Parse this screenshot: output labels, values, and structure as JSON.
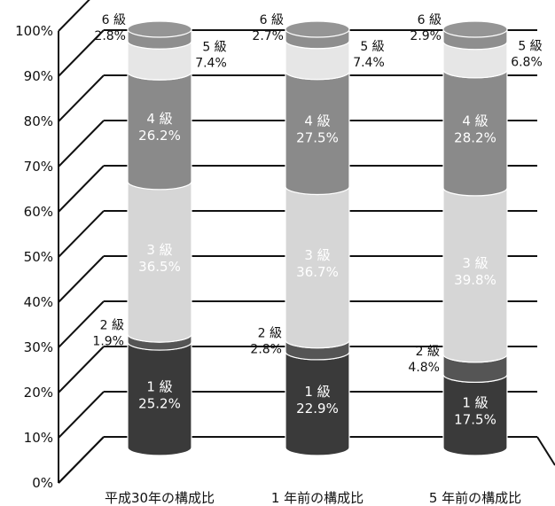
{
  "chart_data": {
    "type": "bar",
    "stacked": true,
    "ylim": [
      0,
      100
    ],
    "y_ticks": [
      "0%",
      "10%",
      "20%",
      "30%",
      "40%",
      "50%",
      "60%",
      "70%",
      "80%",
      "90%",
      "100%"
    ],
    "categories": [
      "平成30年の構成比",
      "1 年前の構成比",
      "5 年前の構成比"
    ],
    "series": [
      {
        "name": "1 級",
        "values": [
          25.2,
          22.9,
          17.5
        ],
        "labels": [
          "25.2%",
          "22.9%",
          "17.5%"
        ],
        "color": "#3a3a3a"
      },
      {
        "name": "2 級",
        "values": [
          1.9,
          2.8,
          4.8
        ],
        "labels": [
          "1.9%",
          "2.8%",
          "4.8%"
        ],
        "color": "#555555"
      },
      {
        "name": "3 級",
        "values": [
          36.5,
          36.7,
          39.8
        ],
        "labels": [
          "36.5%",
          "36.7%",
          "39.8%"
        ],
        "color": "#d6d6d6"
      },
      {
        "name": "4 級",
        "values": [
          26.2,
          27.5,
          28.2
        ],
        "labels": [
          "26.2%",
          "27.5%",
          "28.2%"
        ],
        "color": "#8a8a8a"
      },
      {
        "name": "5 級",
        "values": [
          7.4,
          7.4,
          6.8
        ],
        "labels": [
          "7.4%",
          "7.4%",
          "6.8%"
        ],
        "color": "#e6e6e6"
      },
      {
        "name": "6 級",
        "values": [
          2.8,
          2.7,
          2.9
        ],
        "labels": [
          "2.8%",
          "2.7%",
          "2.9%"
        ],
        "color": "#8e8e8e"
      }
    ]
  }
}
